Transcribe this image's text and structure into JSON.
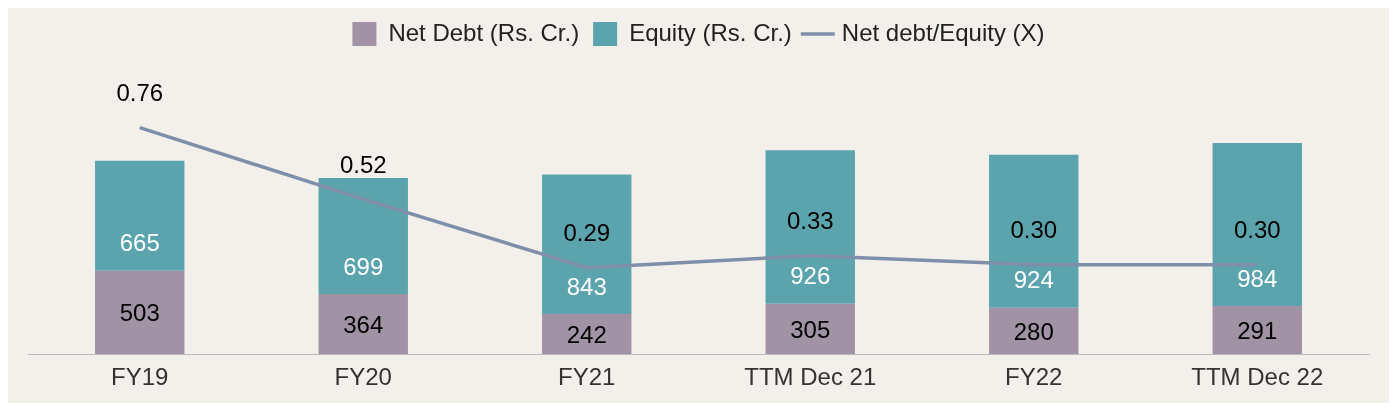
{
  "chart_data": {
    "type": "bar",
    "stacked": true,
    "categories": [
      "FY19",
      "FY20",
      "FY21",
      "TTM Dec 21",
      "FY22",
      "TTM Dec 22"
    ],
    "series": [
      {
        "name": "Net Debt (Rs. Cr.)",
        "color": "#a192a6",
        "values": [
          503,
          364,
          242,
          305,
          280,
          291
        ]
      },
      {
        "name": "Equity (Rs. Cr.)",
        "color": "#5ba4ae",
        "values": [
          665,
          699,
          843,
          926,
          924,
          984
        ]
      },
      {
        "name": "Net debt/Equity (X)",
        "type": "line",
        "axis": "y2",
        "color": "#7f8faa",
        "values": [
          0.76,
          0.52,
          0.29,
          0.33,
          0.3,
          0.3
        ],
        "value_labels": [
          "0.76",
          "0.52",
          "0.29",
          "0.33",
          "0.30",
          "0.30"
        ]
      }
    ],
    "tick_labels": "x",
    "grid": false,
    "legend": "top",
    "marker": "none",
    "line_style": "solid",
    "data_labels": true
  }
}
